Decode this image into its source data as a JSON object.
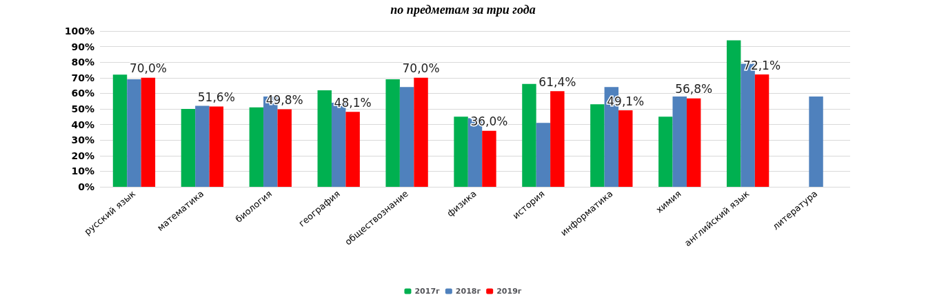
{
  "chart_data": {
    "type": "bar",
    "title": "по предметам за три года",
    "categories": [
      "русский язык",
      "математика",
      "биология",
      "география",
      "обществознание",
      "физика",
      "история",
      "информатика",
      "химия",
      "английский язык",
      "литература"
    ],
    "series": [
      {
        "name": "2017г",
        "color": "#00b050",
        "values": [
          72,
          50,
          51,
          62,
          69,
          45,
          66,
          53,
          45,
          94,
          null
        ]
      },
      {
        "name": "2018г",
        "color": "#4f81bd",
        "values": [
          69,
          52,
          58,
          54,
          64,
          44,
          41,
          64,
          58,
          79,
          58
        ]
      },
      {
        "name": "2019г",
        "color": "#ff0000",
        "values": [
          70.0,
          51.6,
          49.8,
          48.1,
          70.0,
          36.0,
          61.4,
          49.1,
          56.8,
          72.1,
          null
        ],
        "value_labels": [
          "70,0%",
          "51,6%",
          "49,8%",
          "48,1%",
          "70,0%",
          "36,0%",
          "61,4%",
          "49,1%",
          "56,8%",
          "72,1%",
          null
        ]
      }
    ],
    "ylim": [
      0,
      100
    ],
    "yticks": [
      {
        "value": 0,
        "label": "0%"
      },
      {
        "value": 10,
        "label": "10%"
      },
      {
        "value": 20,
        "label": "20%"
      },
      {
        "value": 30,
        "label": "30%"
      },
      {
        "value": 40,
        "label": "40%"
      },
      {
        "value": 50,
        "label": "50%"
      },
      {
        "value": 60,
        "label": "60%"
      },
      {
        "value": 70,
        "label": "70%"
      },
      {
        "value": 80,
        "label": "80%"
      },
      {
        "value": 90,
        "label": "90%"
      },
      {
        "value": 100,
        "label": "100%"
      }
    ],
    "grid": "y",
    "legend": "bottom"
  }
}
